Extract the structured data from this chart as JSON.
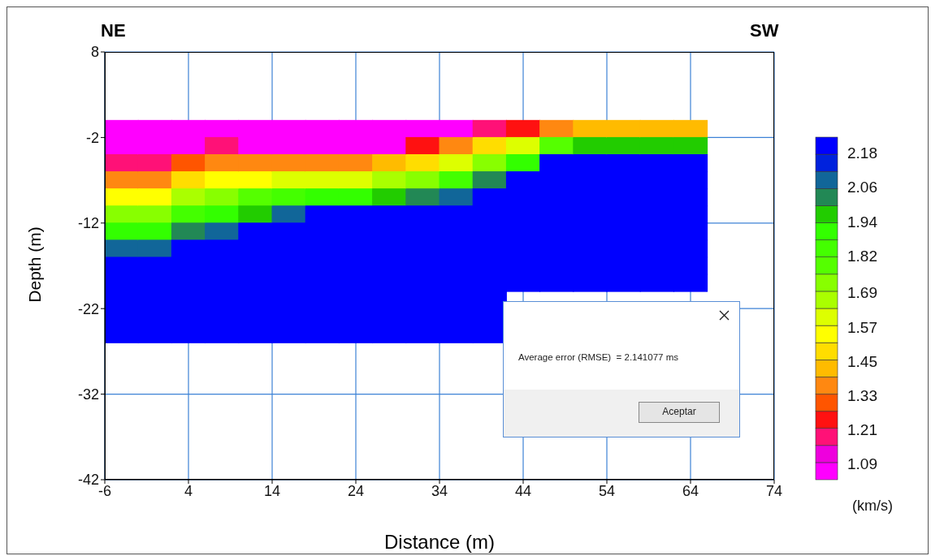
{
  "chart_data": {
    "type": "scatter",
    "xlabel": "Distance (m)",
    "ylabel": "Depth (m)",
    "clabel": "(km/s)",
    "marker": "square",
    "grid": true,
    "xlim": [
      -6,
      74
    ],
    "xticks": [
      -6,
      4,
      14,
      24,
      34,
      44,
      54,
      64,
      74
    ],
    "ylim": [
      -42,
      8
    ],
    "yticks": [
      -42,
      -32,
      -22,
      -12,
      -2,
      8
    ],
    "clim": [
      1.04,
      2.24
    ],
    "cticks": [
      1.09,
      1.21,
      1.33,
      1.45,
      1.57,
      1.69,
      1.82,
      1.94,
      2.06,
      2.18
    ],
    "annotations": [
      "NE",
      "SW",
      "Average error (RMSE)  = 2.141077 ms",
      "Aceptar"
    ],
    "x": [
      -4,
      -4,
      -4,
      -4,
      -4,
      -4,
      -4,
      -4,
      -4,
      -4,
      -4,
      -4,
      -4,
      0,
      0,
      0,
      0,
      0,
      0,
      0,
      0,
      0,
      0,
      0,
      0,
      0,
      4,
      4,
      4,
      4,
      4,
      4,
      4,
      4,
      4,
      4,
      4,
      4,
      4,
      8,
      8,
      8,
      8,
      8,
      8,
      8,
      8,
      8,
      8,
      8,
      8,
      8,
      12,
      12,
      12,
      12,
      12,
      12,
      12,
      12,
      12,
      12,
      12,
      12,
      12,
      16,
      16,
      16,
      16,
      16,
      16,
      16,
      16,
      16,
      16,
      16,
      16,
      16,
      20,
      20,
      20,
      20,
      20,
      20,
      20,
      20,
      20,
      20,
      20,
      20,
      20,
      24,
      24,
      24,
      24,
      24,
      24,
      24,
      24,
      24,
      24,
      24,
      24,
      24,
      28,
      28,
      28,
      28,
      28,
      28,
      28,
      28,
      28,
      28,
      28,
      28,
      28,
      32,
      32,
      32,
      32,
      32,
      32,
      32,
      32,
      32,
      32,
      32,
      32,
      32,
      36,
      36,
      36,
      36,
      36,
      36,
      36,
      36,
      36,
      36,
      36,
      36,
      36,
      40,
      40,
      40,
      40,
      40,
      40,
      40,
      40,
      40,
      40,
      40,
      40,
      40,
      44,
      44,
      44,
      44,
      44,
      44,
      44,
      44,
      44,
      44,
      48,
      48,
      48,
      48,
      48,
      48,
      48,
      48,
      48,
      48,
      52,
      52,
      52,
      52,
      52,
      52,
      52,
      52,
      52,
      52,
      56,
      56,
      56,
      56,
      56,
      56,
      56,
      56,
      56,
      56,
      60,
      60,
      60,
      60,
      60,
      60,
      60,
      60,
      60,
      60,
      64,
      64,
      64,
      64,
      64,
      64,
      64,
      64,
      64,
      64
    ],
    "values": [
      -1,
      -3,
      -5,
      -7,
      -9,
      -11,
      -13,
      -15,
      -17,
      -19,
      -21,
      -23,
      -25,
      -1,
      -3,
      -5,
      -7,
      -9,
      -11,
      -13,
      -15,
      -17,
      -19,
      -21,
      -23,
      -25,
      -1,
      -3,
      -5,
      -7,
      -9,
      -11,
      -13,
      -15,
      -17,
      -19,
      -21,
      -23,
      -25,
      -1,
      -3,
      -5,
      -7,
      -9,
      -11,
      -13,
      -15,
      -17,
      -19,
      -21,
      -23,
      -25,
      -1,
      -3,
      -5,
      -7,
      -9,
      -11,
      -13,
      -15,
      -17,
      -19,
      -21,
      -23,
      -25,
      -1,
      -3,
      -5,
      -7,
      -9,
      -11,
      -13,
      -15,
      -17,
      -19,
      -21,
      -23,
      -25,
      -1,
      -3,
      -5,
      -7,
      -9,
      -11,
      -13,
      -15,
      -17,
      -19,
      -21,
      -23,
      -25,
      -1,
      -3,
      -5,
      -7,
      -9,
      -11,
      -13,
      -15,
      -17,
      -19,
      -21,
      -23,
      -25,
      -1,
      -3,
      -5,
      -7,
      -9,
      -11,
      -13,
      -15,
      -17,
      -19,
      -21,
      -23,
      -25,
      -1,
      -3,
      -5,
      -7,
      -9,
      -11,
      -13,
      -15,
      -17,
      -19,
      -21,
      -23,
      -25,
      -1,
      -3,
      -5,
      -7,
      -9,
      -11,
      -13,
      -15,
      -17,
      -19,
      -21,
      -23,
      -25,
      -1,
      -3,
      -5,
      -7,
      -9,
      -11,
      -13,
      -15,
      -17,
      -19,
      -21,
      -23,
      -25,
      -1,
      -3,
      -5,
      -7,
      -9,
      -11,
      -13,
      -15,
      -17,
      -19,
      -1,
      -3,
      -5,
      -7,
      -9,
      -11,
      -13,
      -15,
      -17,
      -19,
      -1,
      -3,
      -5,
      -7,
      -9,
      -11,
      -13,
      -15,
      -17,
      -19,
      -1,
      -3,
      -5,
      -7,
      -9,
      -11,
      -13,
      -15,
      -17,
      -19,
      -1,
      -3,
      -5,
      -7,
      -9,
      -11,
      -13,
      -15,
      -17,
      -19,
      -1,
      -3,
      -5,
      -7,
      -9,
      -11,
      -13,
      -15,
      -17,
      -19
    ],
    "cvalues": [
      1.07,
      1.07,
      1.2,
      1.38,
      1.56,
      1.74,
      1.92,
      2.1,
      2.2,
      2.2,
      2.2,
      2.2,
      2.2,
      1.07,
      1.07,
      1.2,
      1.38,
      1.56,
      1.74,
      1.92,
      2.1,
      2.2,
      2.2,
      2.2,
      2.2,
      2.2,
      1.07,
      1.07,
      1.29,
      1.47,
      1.65,
      1.83,
      2.01,
      2.2,
      2.2,
      2.2,
      2.2,
      2.2,
      2.2,
      1.07,
      1.2,
      1.38,
      1.56,
      1.74,
      1.92,
      2.1,
      2.2,
      2.2,
      2.2,
      2.2,
      2.2,
      2.2,
      1.07,
      1.07,
      1.36,
      1.57,
      1.78,
      1.99,
      2.2,
      2.2,
      2.2,
      2.2,
      2.2,
      2.2,
      2.2,
      1.07,
      1.07,
      1.38,
      1.62,
      1.86,
      2.1,
      2.2,
      2.2,
      2.2,
      2.2,
      2.2,
      2.2,
      2.2,
      1.07,
      1.07,
      1.38,
      1.64,
      1.9,
      2.2,
      2.2,
      2.2,
      2.2,
      2.2,
      2.2,
      2.2,
      2.2,
      1.07,
      1.07,
      1.38,
      1.64,
      1.9,
      2.2,
      2.2,
      2.2,
      2.2,
      2.2,
      2.2,
      2.2,
      2.2,
      1.07,
      1.07,
      1.43,
      1.7,
      1.97,
      2.2,
      2.2,
      2.2,
      2.2,
      2.2,
      2.2,
      2.2,
      2.2,
      1.07,
      1.25,
      1.5,
      1.76,
      2.01,
      2.2,
      2.2,
      2.2,
      2.2,
      2.2,
      2.2,
      2.2,
      2.2,
      1.07,
      1.35,
      1.6,
      1.85,
      2.1,
      2.2,
      2.2,
      2.2,
      2.2,
      2.2,
      2.2,
      2.2,
      2.2,
      1.2,
      1.48,
      1.75,
      2.03,
      2.2,
      2.2,
      2.2,
      2.2,
      2.2,
      2.2,
      2.2,
      2.2,
      2.2,
      1.28,
      1.61,
      1.94,
      2.2,
      2.2,
      2.2,
      2.2,
      2.2,
      2.2,
      2.2,
      1.4,
      1.8,
      2.2,
      2.2,
      2.2,
      2.2,
      2.2,
      2.2,
      2.2,
      2.2,
      1.43,
      1.95,
      2.2,
      2.2,
      2.2,
      2.2,
      2.2,
      2.2,
      2.2,
      2.2,
      1.43,
      1.95,
      2.2,
      2.2,
      2.2,
      2.2,
      2.2,
      2.2,
      2.2,
      2.2,
      1.43,
      1.95,
      2.2,
      2.2,
      2.2,
      2.2,
      2.2,
      2.2,
      2.2,
      2.2,
      1.43,
      1.95,
      2.2,
      2.2,
      2.2,
      2.2,
      2.2,
      2.2,
      2.2,
      2.2
    ]
  }
}
